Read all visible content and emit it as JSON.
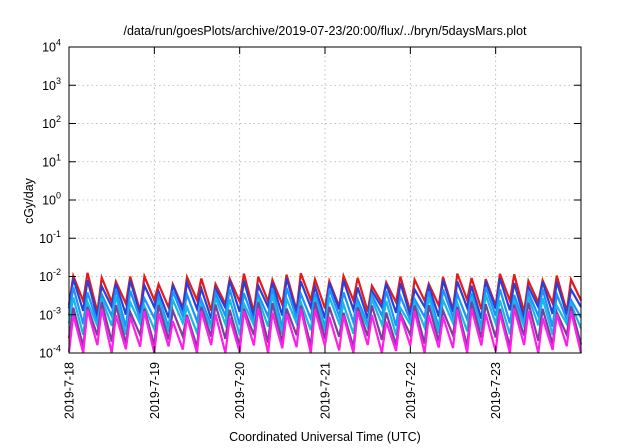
{
  "chart_data": {
    "type": "line",
    "title": "/data/run/goesPlots/archive/2019-07-23/20:00/flux/../bryn/5daysMars.plot",
    "xlabel": "Coordinated Universal Time (UTC)",
    "ylabel": "cGy/day",
    "y_scale": "log",
    "ylim": [
      0.0001,
      10000
    ],
    "xlim": [
      "2019-07-18",
      "2019-07-24"
    ],
    "y_ticks": [
      {
        "base": "10",
        "exp": "-4"
      },
      {
        "base": "10",
        "exp": "-3"
      },
      {
        "base": "10",
        "exp": "-2"
      },
      {
        "base": "10",
        "exp": "-1"
      },
      {
        "base": "10",
        "exp": "0"
      },
      {
        "base": "10",
        "exp": "1"
      },
      {
        "base": "10",
        "exp": "2"
      },
      {
        "base": "10",
        "exp": "3"
      },
      {
        "base": "10",
        "exp": "4"
      }
    ],
    "x_ticks": [
      "2019-7-18",
      "2019-7-19",
      "2019-7-20",
      "2019-7-21",
      "2019-7-22",
      "2019-7-23"
    ],
    "grid": true,
    "legend": "none",
    "pattern": {
      "shape": "sawtooth",
      "cycles_per_day": 6,
      "peak_day_fraction": 0.3
    },
    "series": [
      {
        "color": "#e41a1c",
        "peak": 0.009,
        "trough": 0.0018
      },
      {
        "color": "#2b3fd6",
        "peak": 0.0065,
        "trough": 0.0012
      },
      {
        "color": "#1e90ff",
        "peak": 0.0038,
        "trough": 0.0007
      },
      {
        "color": "#17b7e6",
        "peak": 0.0024,
        "trough": 0.00045
      },
      {
        "color": "#7b3fa0",
        "peak": 0.0016,
        "trough": 0.00022
      },
      {
        "color": "#ff1fe6",
        "peak": 0.0011,
        "trough": 0.00012
      }
    ]
  }
}
